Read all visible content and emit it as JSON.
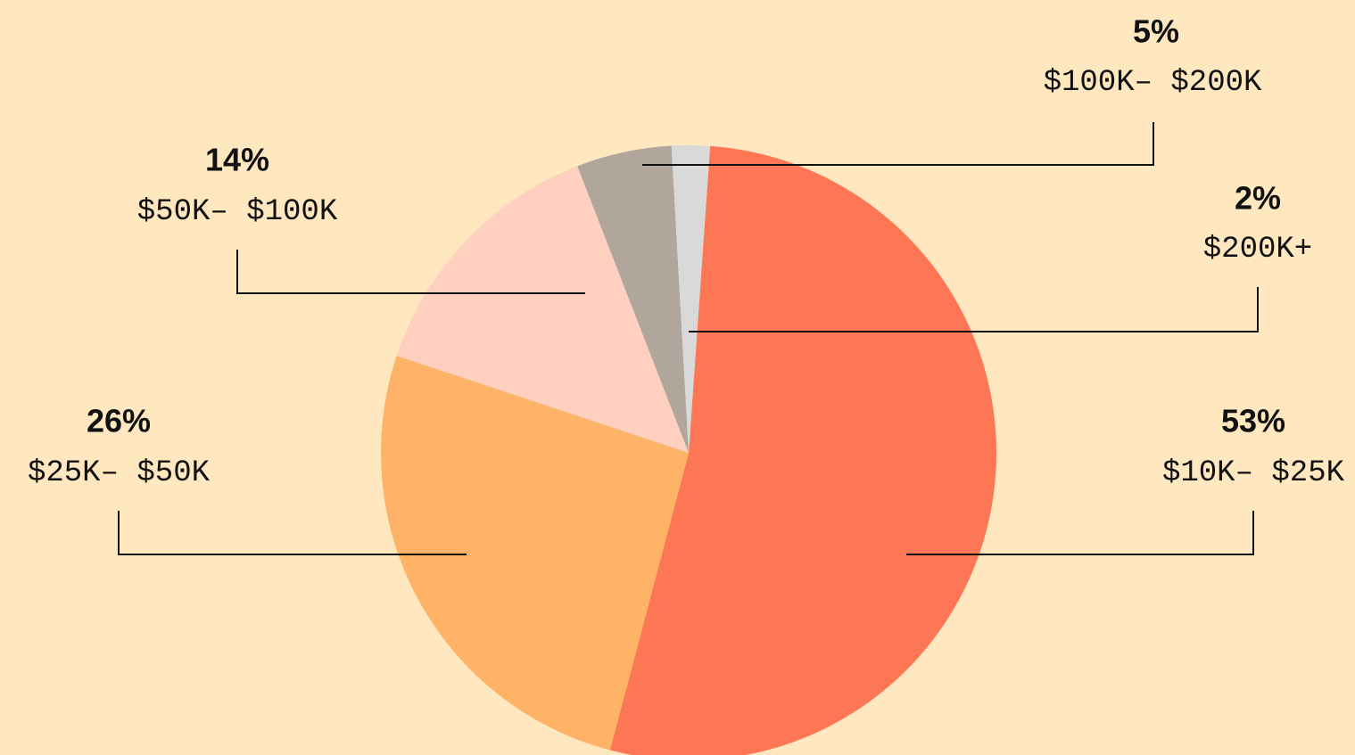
{
  "chart_data": {
    "type": "pie",
    "categories": [
      "$10K– $25K",
      "$25K– $50K",
      "$50K– $100K",
      "$100K– $200K",
      "$200K+"
    ],
    "values": [
      53,
      26,
      14,
      5,
      2
    ],
    "value_labels": [
      "53%",
      "26%",
      "14%",
      "5%",
      "2%"
    ],
    "colors": [
      "#fe7755",
      "#ffb366",
      "#ffd0c0",
      "#b0a69c",
      "#d9d9d9"
    ]
  }
}
